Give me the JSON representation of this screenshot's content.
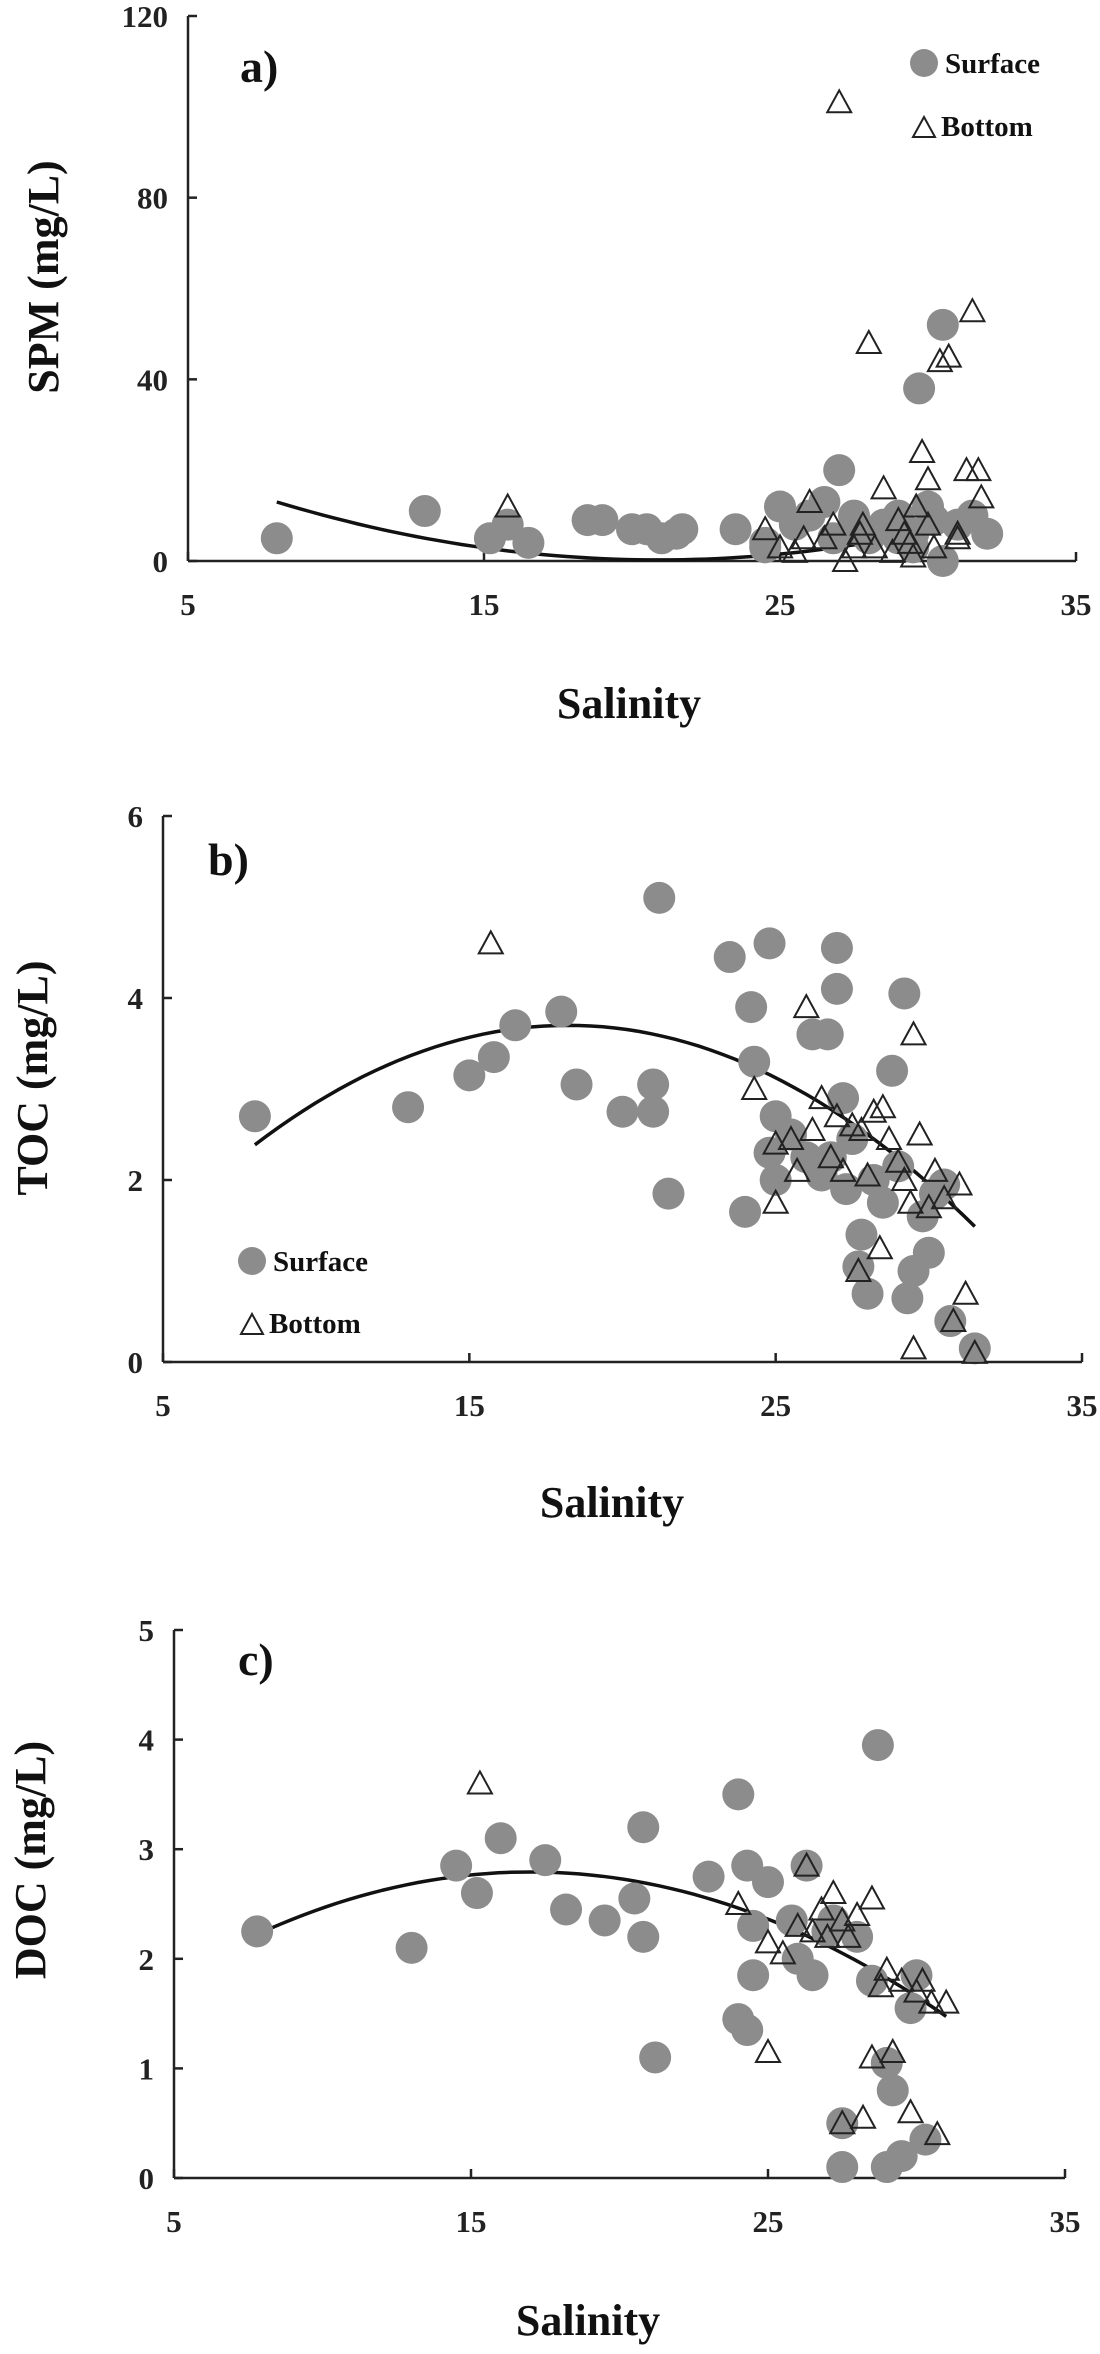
{
  "chart_data": [
    {
      "type": "scatter",
      "panel_label": "a)",
      "xlabel": "Salinity",
      "ylabel": "SPM (mg/L)",
      "xlim": [
        5,
        35
      ],
      "ylim": [
        0,
        120
      ],
      "xticks": [
        "5",
        "15",
        "25",
        "35"
      ],
      "yticks": [
        "0",
        "40",
        "80",
        "120"
      ],
      "legend": {
        "position": "top-right",
        "entries": [
          "Surface",
          "Bottom"
        ]
      },
      "series": [
        {
          "name": "Surface",
          "marker": "circle",
          "color": "#8c8c8c",
          "points": [
            [
              8,
              5
            ],
            [
              13,
              11
            ],
            [
              15.2,
              5
            ],
            [
              15.8,
              8
            ],
            [
              16.5,
              4
            ],
            [
              18.5,
              9
            ],
            [
              19,
              9
            ],
            [
              20,
              7
            ],
            [
              20.5,
              7
            ],
            [
              21,
              5
            ],
            [
              21.5,
              6
            ],
            [
              21.7,
              7
            ],
            [
              23.5,
              7
            ],
            [
              24.5,
              3
            ],
            [
              24.5,
              4
            ],
            [
              25,
              12
            ],
            [
              25.5,
              8
            ],
            [
              26,
              10
            ],
            [
              26.5,
              13
            ],
            [
              26.8,
              5
            ],
            [
              27,
              20
            ],
            [
              27.5,
              7
            ],
            [
              27.5,
              10
            ],
            [
              28,
              5
            ],
            [
              28.5,
              8
            ],
            [
              29,
              5
            ],
            [
              29,
              10
            ],
            [
              29.5,
              3
            ],
            [
              29.5,
              6
            ],
            [
              29.7,
              38
            ],
            [
              30,
              12
            ],
            [
              30.2,
              9
            ],
            [
              30.5,
              0
            ],
            [
              30.5,
              52
            ],
            [
              31,
              8
            ],
            [
              31.5,
              10
            ],
            [
              32,
              6
            ]
          ]
        },
        {
          "name": "Bottom",
          "marker": "triangle-open",
          "color": "#222222",
          "points": [
            [
              15.8,
              12
            ],
            [
              24.5,
              7
            ],
            [
              25,
              3
            ],
            [
              25.5,
              2
            ],
            [
              25.8,
              5
            ],
            [
              26,
              13
            ],
            [
              26.5,
              5
            ],
            [
              26.8,
              8
            ],
            [
              27,
              101
            ],
            [
              27.2,
              0
            ],
            [
              27.5,
              3
            ],
            [
              27.7,
              6
            ],
            [
              27.8,
              8
            ],
            [
              28,
              48
            ],
            [
              28.2,
              3
            ],
            [
              28.5,
              16
            ],
            [
              28.8,
              2
            ],
            [
              29,
              9
            ],
            [
              29.2,
              6
            ],
            [
              29.4,
              4
            ],
            [
              29.5,
              1
            ],
            [
              29.6,
              12
            ],
            [
              29.8,
              24
            ],
            [
              30,
              18
            ],
            [
              30,
              8
            ],
            [
              30.2,
              3
            ],
            [
              30.4,
              44
            ],
            [
              30.7,
              45
            ],
            [
              31,
              5
            ],
            [
              31,
              6
            ],
            [
              31.3,
              20
            ],
            [
              31.5,
              55
            ],
            [
              31.7,
              20
            ],
            [
              31.8,
              14
            ]
          ]
        }
      ],
      "trendline": {
        "type": "polynomial-2",
        "coefficients": [
          33.7,
          -3.2,
          0.0765
        ],
        "x_range": [
          8,
          31.5
        ]
      }
    },
    {
      "type": "scatter",
      "panel_label": "b)",
      "xlabel": "Salinity",
      "ylabel": "TOC (mg/L)",
      "xlim": [
        5,
        35
      ],
      "ylim": [
        0,
        6
      ],
      "xticks": [
        "5",
        "15",
        "25",
        "35"
      ],
      "yticks": [
        "0",
        "2",
        "4",
        "6"
      ],
      "legend": {
        "position": "bottom-left",
        "entries": [
          "Surface",
          "Bottom"
        ]
      },
      "series": [
        {
          "name": "Surface",
          "marker": "circle",
          "color": "#8c8c8c",
          "points": [
            [
              8,
              2.7
            ],
            [
              13,
              2.8
            ],
            [
              15,
              3.15
            ],
            [
              15.8,
              3.35
            ],
            [
              16.5,
              3.7
            ],
            [
              18,
              3.85
            ],
            [
              18.5,
              3.05
            ],
            [
              20,
              2.75
            ],
            [
              21,
              3.05
            ],
            [
              21,
              2.75
            ],
            [
              21.2,
              5.1
            ],
            [
              21.5,
              1.85
            ],
            [
              23.5,
              4.45
            ],
            [
              24,
              1.65
            ],
            [
              24.2,
              3.9
            ],
            [
              24.3,
              3.3
            ],
            [
              24.8,
              4.6
            ],
            [
              24.8,
              2.3
            ],
            [
              25,
              2.7
            ],
            [
              25,
              2.0
            ],
            [
              25.5,
              2.5
            ],
            [
              26,
              2.25
            ],
            [
              26.2,
              3.6
            ],
            [
              26.5,
              2.05
            ],
            [
              26.7,
              3.6
            ],
            [
              26.8,
              2.25
            ],
            [
              27,
              4.55
            ],
            [
              27,
              4.1
            ],
            [
              27.2,
              2.9
            ],
            [
              27.3,
              1.9
            ],
            [
              27.5,
              2.45
            ],
            [
              27.7,
              1.05
            ],
            [
              27.8,
              1.4
            ],
            [
              28,
              0.75
            ],
            [
              28.2,
              2.0
            ],
            [
              28.5,
              1.75
            ],
            [
              28.8,
              3.2
            ],
            [
              29,
              2.15
            ],
            [
              29.2,
              4.05
            ],
            [
              29.3,
              0.7
            ],
            [
              29.5,
              1.0
            ],
            [
              29.8,
              1.6
            ],
            [
              30,
              1.2
            ],
            [
              30.2,
              1.85
            ],
            [
              30.5,
              1.95
            ],
            [
              30.7,
              0.45
            ],
            [
              31.5,
              0.15
            ]
          ]
        },
        {
          "name": "Bottom",
          "marker": "triangle-open",
          "color": "#222222",
          "points": [
            [
              15.7,
              4.6
            ],
            [
              24.3,
              3.0
            ],
            [
              25,
              1.75
            ],
            [
              25,
              2.4
            ],
            [
              25.5,
              2.45
            ],
            [
              25.7,
              2.1
            ],
            [
              26,
              3.9
            ],
            [
              26.2,
              2.55
            ],
            [
              26.5,
              2.9
            ],
            [
              26.8,
              2.25
            ],
            [
              27,
              2.7
            ],
            [
              27.2,
              2.1
            ],
            [
              27.5,
              2.6
            ],
            [
              27.7,
              1.0
            ],
            [
              27.8,
              2.55
            ],
            [
              28,
              2.05
            ],
            [
              28.2,
              2.75
            ],
            [
              28.4,
              1.25
            ],
            [
              28.5,
              2.8
            ],
            [
              28.7,
              2.45
            ],
            [
              29,
              2.2
            ],
            [
              29.2,
              2.0
            ],
            [
              29.4,
              1.75
            ],
            [
              29.5,
              3.6
            ],
            [
              29.5,
              0.15
            ],
            [
              29.7,
              2.5
            ],
            [
              30,
              1.7
            ],
            [
              30.2,
              2.1
            ],
            [
              30.5,
              1.8
            ],
            [
              30.8,
              0.45
            ],
            [
              31,
              1.95
            ],
            [
              31.2,
              0.75
            ],
            [
              31.5,
              0.1
            ]
          ]
        }
      ],
      "trendline": {
        "type": "polynomial-2",
        "coefficients": [
          -0.47,
          0.4575,
          -0.01255
        ],
        "x_range": [
          8,
          31.5
        ]
      }
    },
    {
      "type": "scatter",
      "panel_label": "c)",
      "xlabel": "Salinity",
      "ylabel": "DOC (mg/L)",
      "xlim": [
        5,
        35
      ],
      "ylim": [
        0,
        5
      ],
      "xticks": [
        "5",
        "15",
        "25",
        "35"
      ],
      "yticks": [
        "0",
        "1",
        "2",
        "3",
        "4",
        "5"
      ],
      "legend": null,
      "series": [
        {
          "name": "Surface",
          "marker": "circle",
          "color": "#8c8c8c",
          "points": [
            [
              7.8,
              2.25
            ],
            [
              13,
              2.1
            ],
            [
              14.5,
              2.85
            ],
            [
              15.2,
              2.6
            ],
            [
              16,
              3.1
            ],
            [
              17.5,
              2.9
            ],
            [
              18.2,
              2.45
            ],
            [
              19.5,
              2.35
            ],
            [
              20.5,
              2.55
            ],
            [
              20.8,
              2.2
            ],
            [
              20.8,
              3.2
            ],
            [
              21.2,
              1.1
            ],
            [
              23,
              2.75
            ],
            [
              24,
              3.5
            ],
            [
              24,
              1.45
            ],
            [
              24.3,
              2.85
            ],
            [
              24.3,
              1.35
            ],
            [
              24.5,
              1.85
            ],
            [
              24.5,
              2.3
            ],
            [
              25,
              2.7
            ],
            [
              25.8,
              2.35
            ],
            [
              26,
              2.0
            ],
            [
              26.3,
              2.85
            ],
            [
              26.5,
              1.85
            ],
            [
              27,
              2.25
            ],
            [
              27.2,
              2.35
            ],
            [
              27.5,
              0.1
            ],
            [
              27.5,
              0.5
            ],
            [
              28,
              2.2
            ],
            [
              28.5,
              1.8
            ],
            [
              28.7,
              3.95
            ],
            [
              29,
              1.05
            ],
            [
              29,
              0.1
            ],
            [
              29.2,
              0.8
            ],
            [
              29.5,
              0.2
            ],
            [
              29.8,
              1.55
            ],
            [
              30,
              1.85
            ],
            [
              30.3,
              0.35
            ]
          ]
        },
        {
          "name": "Bottom",
          "marker": "triangle-open",
          "color": "#222222",
          "points": [
            [
              15.3,
              3.6
            ],
            [
              24,
              2.5
            ],
            [
              25,
              1.15
            ],
            [
              25,
              2.15
            ],
            [
              25.5,
              2.05
            ],
            [
              26,
              2.3
            ],
            [
              26.3,
              2.85
            ],
            [
              26.5,
              2.25
            ],
            [
              26.8,
              2.45
            ],
            [
              27,
              2.2
            ],
            [
              27.2,
              2.6
            ],
            [
              27.5,
              0.5
            ],
            [
              27.5,
              2.35
            ],
            [
              27.7,
              2.2
            ],
            [
              28,
              2.4
            ],
            [
              28.2,
              0.55
            ],
            [
              28.5,
              2.55
            ],
            [
              28.5,
              1.1
            ],
            [
              28.8,
              1.75
            ],
            [
              29,
              1.9
            ],
            [
              29.2,
              1.15
            ],
            [
              29.5,
              1.8
            ],
            [
              29.8,
              0.6
            ],
            [
              30,
              1.7
            ],
            [
              30.2,
              1.8
            ],
            [
              30.5,
              1.6
            ],
            [
              30.7,
              0.4
            ],
            [
              31,
              1.6
            ]
          ]
        }
      ],
      "trendline": {
        "type": "polynomial-2",
        "coefficients": [
          0.85,
          0.2285,
          -0.006721
        ],
        "x_range": [
          7.8,
          31
        ]
      }
    }
  ]
}
